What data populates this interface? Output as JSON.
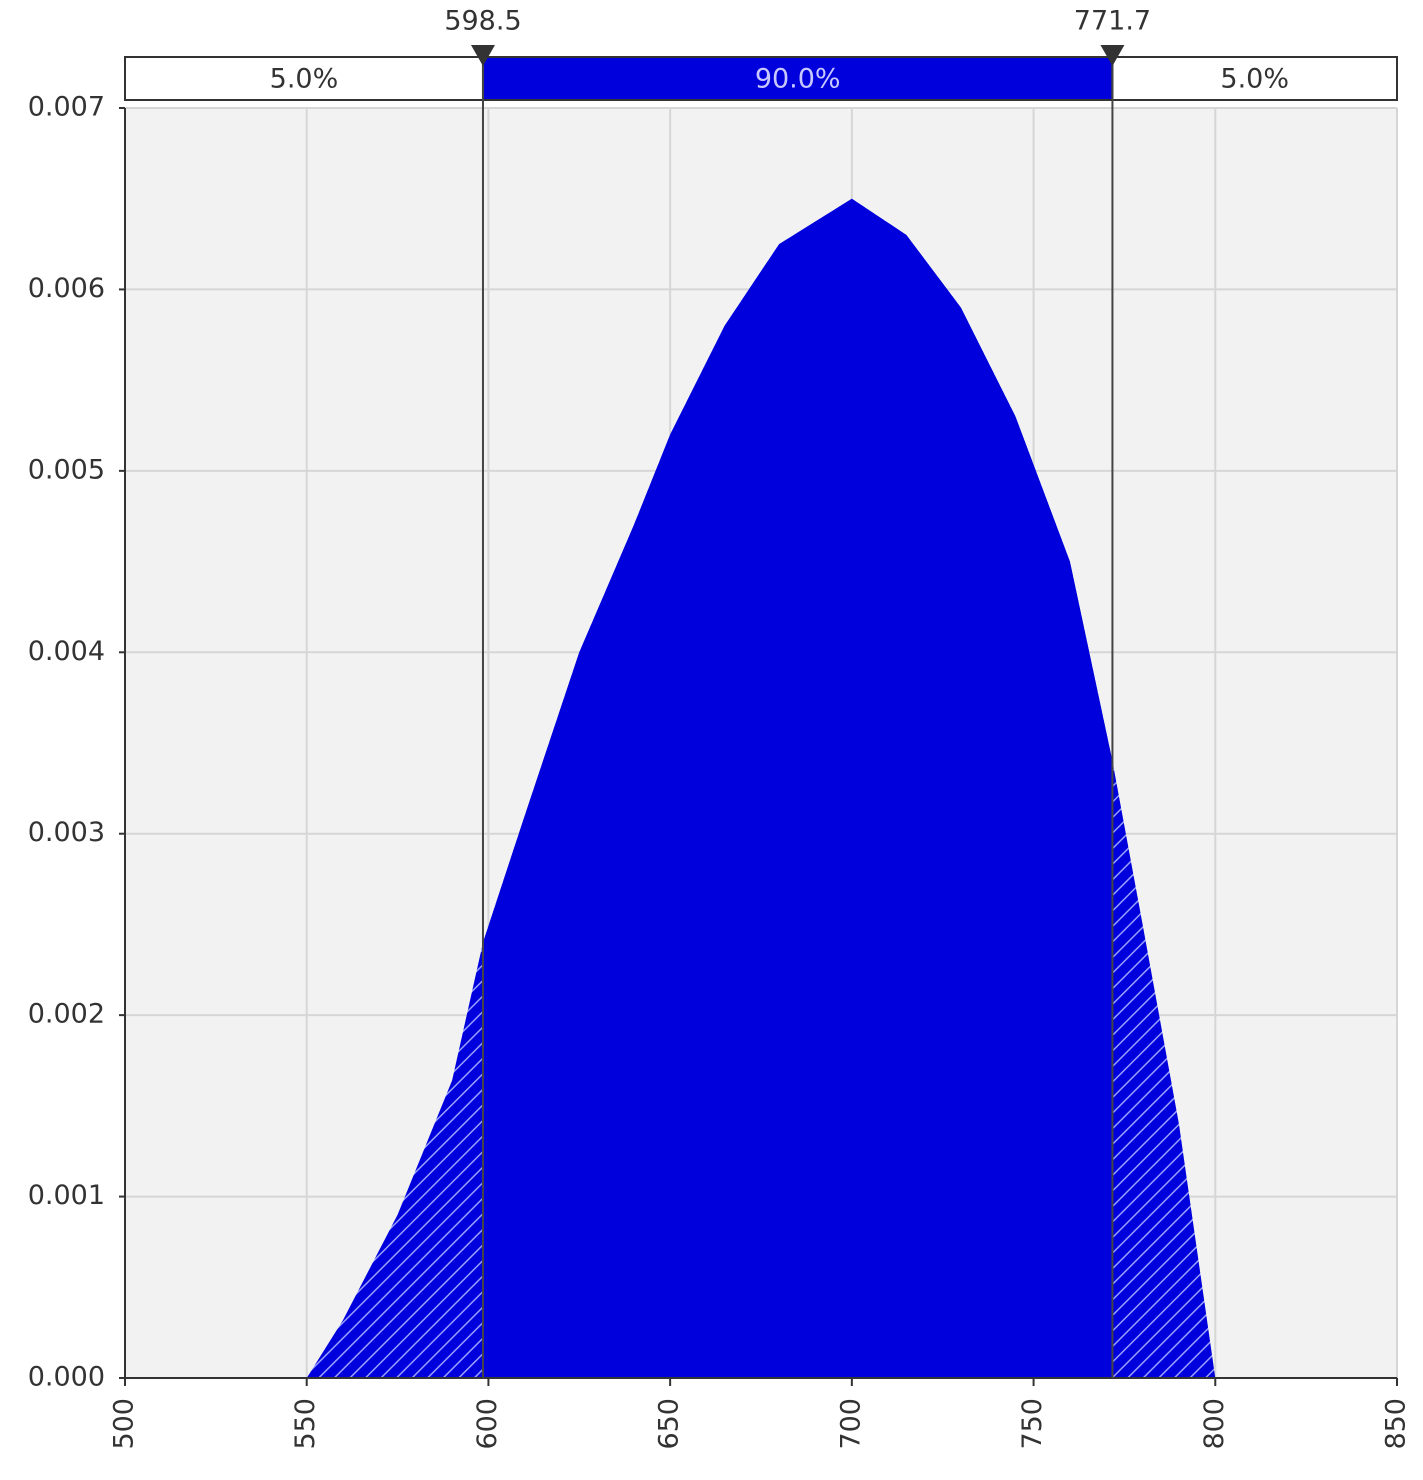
{
  "chart_data": {
    "type": "area",
    "x": [
      500,
      550,
      560,
      575,
      590,
      598.5,
      610,
      625,
      640,
      650,
      665,
      680,
      700,
      715,
      730,
      745,
      760,
      771.7,
      780,
      790,
      800,
      850
    ],
    "values": [
      0,
      0,
      0.00032,
      0.0009,
      0.00164,
      0.0024,
      0.0031,
      0.004,
      0.0047,
      0.0052,
      0.0058,
      0.00625,
      0.0065,
      0.0063,
      0.0059,
      0.0053,
      0.0045,
      0.0034,
      0.0025,
      0.0014,
      0,
      0
    ],
    "color": "#0000dd",
    "xlim": [
      500,
      850
    ],
    "xticks": [
      500,
      550,
      600,
      650,
      700,
      750,
      800,
      850
    ],
    "ylim": [
      0,
      0.007
    ],
    "yticks": [
      {
        "value": 0,
        "label": "0.000"
      },
      {
        "value": 0.001,
        "label": "0.001"
      },
      {
        "value": 0.002,
        "label": "0.002"
      },
      {
        "value": 0.003,
        "label": "0.003"
      },
      {
        "value": 0.004,
        "label": "0.004"
      },
      {
        "value": 0.005,
        "label": "0.005"
      },
      {
        "value": 0.006,
        "label": "0.006"
      },
      {
        "value": 0.007,
        "label": "0.007"
      }
    ],
    "grid": true,
    "markers": [
      598.5,
      771.7
    ],
    "regions": {
      "values": [
        5,
        90,
        5
      ],
      "value_labels": [
        "5.0%",
        "90.0%",
        "5.0%"
      ]
    }
  }
}
